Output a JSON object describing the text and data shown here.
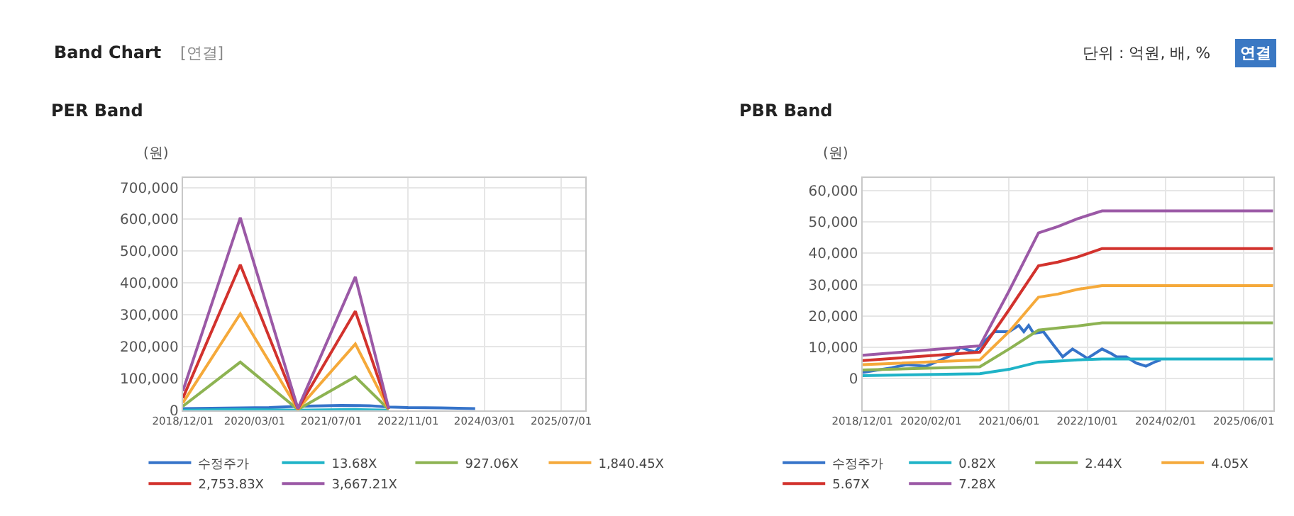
{
  "chart_data": [
    {
      "type": "line",
      "title": "PER Band",
      "ylabel": "(원)",
      "annotations": [
        "Band Chart",
        "[연결]",
        "단위 : 억원, 배, %",
        "연결"
      ],
      "xlim": [
        "2018-12-01",
        "2025-12-01"
      ],
      "xticks": [
        {
          "value": "2018-12-01",
          "label": "2018/12/01"
        },
        {
          "value": "2020-03-01",
          "label": "2020/03/01"
        },
        {
          "value": "2021-07-01",
          "label": "2021/07/01"
        },
        {
          "value": "2022-11-01",
          "label": "2022/11/01"
        },
        {
          "value": "2024-03-01",
          "label": "2024/03/01"
        },
        {
          "value": "2025-07-01",
          "label": "2025/07/01"
        }
      ],
      "ylim": [
        0,
        730000
      ],
      "yticks": [
        0,
        {
          "value": 100000,
          "label": "100,000"
        },
        {
          "value": 200000,
          "label": "200,000"
        },
        {
          "value": 300000,
          "label": "300,000"
        },
        {
          "value": 400000,
          "label": "400,000"
        },
        {
          "value": 500000,
          "label": "500,000"
        },
        {
          "value": 600000,
          "label": "600,000"
        },
        {
          "value": 700000,
          "label": "700,000"
        }
      ],
      "grid": true,
      "legend": "bottom",
      "marker": "none",
      "line_style": "solid",
      "series": [
        {
          "name": "수정주가",
          "color": "#3573c9",
          "x": [
            "2018-12-01",
            "2020-06-01",
            "2020-12-01",
            "2021-09-01",
            "2022-03-01",
            "2022-07-01",
            "2022-11-01",
            "2023-06-01",
            "2024-01-01"
          ],
          "values": [
            5000,
            8000,
            12000,
            15000,
            14000,
            10000,
            8000,
            7000,
            5000
          ]
        },
        {
          "name": "13.68X",
          "color": "#1fb3c7",
          "x": [
            "2018-12-01",
            "2019-12-01",
            "2020-12-01",
            "2021-12-01",
            "2022-07-01"
          ],
          "values": [
            0,
            2000,
            0,
            2000,
            0
          ]
        },
        {
          "name": "927.06X",
          "color": "#8db352",
          "x": [
            "2018-12-01",
            "2019-12-01",
            "2020-12-01",
            "2021-12-01",
            "2022-07-01"
          ],
          "values": [
            12000,
            151000,
            2000,
            105000,
            2000
          ]
        },
        {
          "name": "1,840.45X",
          "color": "#f5a93a",
          "x": [
            "2018-12-01",
            "2019-12-01",
            "2020-12-01",
            "2021-12-01",
            "2022-07-01"
          ],
          "values": [
            23000,
            303000,
            3000,
            208000,
            3000
          ]
        },
        {
          "name": "2,753.83X",
          "color": "#d2322d",
          "x": [
            "2018-12-01",
            "2019-12-01",
            "2020-12-01",
            "2021-12-01",
            "2022-07-01"
          ],
          "values": [
            38000,
            457000,
            4000,
            311000,
            4000
          ]
        },
        {
          "name": "3,667.21X",
          "color": "#9b59a6",
          "x": [
            "2018-12-01",
            "2019-12-01",
            "2020-12-01",
            "2021-12-01",
            "2022-07-01"
          ],
          "values": [
            60000,
            605000,
            5000,
            419000,
            5000
          ]
        }
      ]
    },
    {
      "type": "line",
      "title": "PBR Band",
      "ylabel": "(원)",
      "xlim": [
        "2018-12-01",
        "2025-12-01"
      ],
      "xticks": [
        {
          "value": "2018-12-01",
          "label": "2018/12/01"
        },
        {
          "value": "2020-02-01",
          "label": "2020/02/01"
        },
        {
          "value": "2021-06-01",
          "label": "2021/06/01"
        },
        {
          "value": "2022-10-01",
          "label": "2022/10/01"
        },
        {
          "value": "2024-02-01",
          "label": "2024/02/01"
        },
        {
          "value": "2025-06-01",
          "label": "2025/06/01"
        }
      ],
      "ylim": [
        -10000,
        64000
      ],
      "yticks": [
        0,
        {
          "value": 10000,
          "label": "10,000"
        },
        {
          "value": 20000,
          "label": "20,000"
        },
        {
          "value": 30000,
          "label": "30,000"
        },
        {
          "value": 40000,
          "label": "40,000"
        },
        {
          "value": 50000,
          "label": "50,000"
        },
        {
          "value": 60000,
          "label": "60,000"
        }
      ],
      "grid": true,
      "legend": "bottom",
      "marker": "none",
      "line_style": "solid",
      "series": [
        {
          "name": "수정주가",
          "color": "#3573c9",
          "x": [
            "2018-12-01",
            "2019-06-01",
            "2019-09-01",
            "2020-01-01",
            "2020-04-01",
            "2020-07-01",
            "2020-08-01",
            "2020-11-01",
            "2021-01-01",
            "2021-03-01",
            "2021-06-01",
            "2021-08-01",
            "2021-09-01",
            "2021-10-01",
            "2021-11-01",
            "2022-01-01",
            "2022-03-01",
            "2022-05-01",
            "2022-07-01",
            "2022-09-01",
            "2022-10-01",
            "2023-01-01",
            "2023-03-01",
            "2023-04-01",
            "2023-06-01",
            "2023-08-01",
            "2023-10-01",
            "2023-12-01",
            "2024-01-01"
          ],
          "values": [
            2000,
            3500,
            4500,
            4000,
            6000,
            8000,
            10000,
            8500,
            12000,
            15000,
            15000,
            17000,
            15000,
            17000,
            14500,
            15000,
            11000,
            7000,
            9500,
            7500,
            6500,
            9500,
            8000,
            7000,
            7000,
            5000,
            4000,
            5500,
            6000
          ]
        },
        {
          "name": "0.82X",
          "color": "#1fb3c7",
          "x": [
            "2018-12-01",
            "2020-12-01",
            "2021-06-01",
            "2021-12-01",
            "2022-04-01",
            "2022-08-01",
            "2023-01-01",
            "2025-12-01"
          ],
          "values": [
            1000,
            1600,
            3000,
            5300,
            5600,
            6000,
            6300,
            6300
          ]
        },
        {
          "name": "2.44X",
          "color": "#8db352",
          "x": [
            "2018-12-01",
            "2020-12-01",
            "2021-06-01",
            "2021-12-01",
            "2022-04-01",
            "2022-08-01",
            "2023-01-01",
            "2025-12-01"
          ],
          "values": [
            2800,
            3800,
            9500,
            15500,
            16200,
            16800,
            17800,
            17800
          ]
        },
        {
          "name": "4.05X",
          "color": "#f5a93a",
          "x": [
            "2018-12-01",
            "2020-12-01",
            "2021-06-01",
            "2021-12-01",
            "2022-04-01",
            "2022-08-01",
            "2023-01-01",
            "2025-12-01"
          ],
          "values": [
            4500,
            6000,
            15000,
            26000,
            27000,
            28500,
            29700,
            29700
          ]
        },
        {
          "name": "5.67X",
          "color": "#d2322d",
          "x": [
            "2018-12-01",
            "2020-12-01",
            "2021-06-01",
            "2021-12-01",
            "2022-04-01",
            "2022-08-01",
            "2023-01-01",
            "2025-12-01"
          ],
          "values": [
            5800,
            8500,
            22000,
            36000,
            37200,
            38800,
            41500,
            41500
          ]
        },
        {
          "name": "7.28X",
          "color": "#9b59a6",
          "x": [
            "2018-12-01",
            "2020-12-01",
            "2021-06-01",
            "2021-12-01",
            "2022-04-01",
            "2022-08-01",
            "2023-01-01",
            "2025-12-01"
          ],
          "values": [
            7500,
            10500,
            28000,
            46500,
            48500,
            51000,
            53500,
            53500
          ]
        }
      ]
    }
  ]
}
